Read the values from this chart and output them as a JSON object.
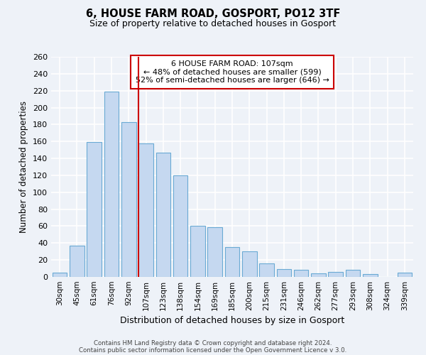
{
  "title": "6, HOUSE FARM ROAD, GOSPORT, PO12 3TF",
  "subtitle": "Size of property relative to detached houses in Gosport",
  "xlabel": "Distribution of detached houses by size in Gosport",
  "ylabel": "Number of detached properties",
  "bar_labels": [
    "30sqm",
    "45sqm",
    "61sqm",
    "76sqm",
    "92sqm",
    "107sqm",
    "123sqm",
    "138sqm",
    "154sqm",
    "169sqm",
    "185sqm",
    "200sqm",
    "215sqm",
    "231sqm",
    "246sqm",
    "262sqm",
    "277sqm",
    "293sqm",
    "308sqm",
    "324sqm",
    "339sqm"
  ],
  "bar_values": [
    5,
    37,
    159,
    219,
    183,
    158,
    147,
    120,
    60,
    59,
    35,
    30,
    16,
    9,
    8,
    4,
    6,
    8,
    3,
    0,
    5
  ],
  "bar_color": "#c5d8f0",
  "bar_edge_color": "#6aaad4",
  "highlight_index": 5,
  "highlight_line_color": "#cc0000",
  "ylim": [
    0,
    260
  ],
  "yticks": [
    0,
    20,
    40,
    60,
    80,
    100,
    120,
    140,
    160,
    180,
    200,
    220,
    240,
    260
  ],
  "annotation_title": "6 HOUSE FARM ROAD: 107sqm",
  "annotation_line1": "← 48% of detached houses are smaller (599)",
  "annotation_line2": "52% of semi-detached houses are larger (646) →",
  "annotation_box_color": "#ffffff",
  "annotation_box_edge": "#cc0000",
  "footer_line1": "Contains HM Land Registry data © Crown copyright and database right 2024.",
  "footer_line2": "Contains public sector information licensed under the Open Government Licence v 3.0.",
  "background_color": "#eef2f8",
  "grid_color": "#ffffff"
}
